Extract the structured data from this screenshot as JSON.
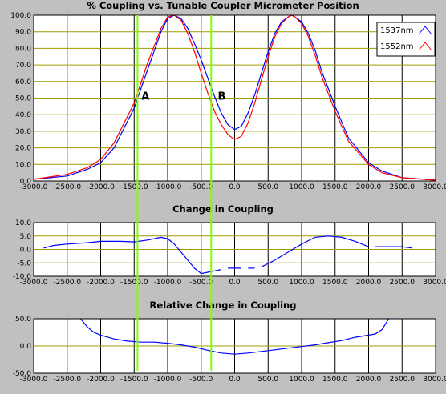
{
  "chart_data": [
    {
      "type": "line",
      "title": "% Coupling vs. Tunable Coupler Micrometer Position",
      "xlim": [
        -3000,
        3000
      ],
      "ylim": [
        0,
        100
      ],
      "x_ticks": [
        "-3000.0",
        "-2500.0",
        "-2000.0",
        "-1500.0",
        "-1000.0",
        "-500.0",
        "0.0",
        "500.0",
        "1000.0",
        "1500.0",
        "2000.0",
        "2500.0",
        "3000.0"
      ],
      "y_ticks": [
        "0.0",
        "10.0",
        "20.0",
        "30.0",
        "40.0",
        "50.0",
        "60.0",
        "70.0",
        "80.0",
        "90.0",
        "100.0"
      ],
      "grid": true,
      "legend_position": "top-right",
      "series": [
        {
          "name": "1537nm",
          "color": "#0000ff",
          "x": [
            -3000,
            -2500,
            -2200,
            -2000,
            -1800,
            -1500,
            -1300,
            -1100,
            -1000,
            -900,
            -800,
            -700,
            -600,
            -500,
            -400,
            -300,
            -200,
            -100,
            0,
            100,
            200,
            300,
            400,
            500,
            600,
            700,
            800,
            850,
            900,
            1000,
            1100,
            1200,
            1300,
            1500,
            1700,
            2000,
            2200,
            2500,
            3000
          ],
          "y": [
            1,
            3,
            7,
            11,
            20,
            44,
            67,
            90,
            98,
            100,
            98,
            92,
            83,
            73,
            62,
            51,
            41,
            34,
            31,
            33,
            41,
            52,
            65,
            78,
            89,
            96,
            99,
            100,
            99,
            96,
            89,
            79,
            66,
            45,
            26,
            11,
            6,
            2,
            0.5
          ]
        },
        {
          "name": "1552nm",
          "color": "#ff0000",
          "x": [
            -3000,
            -2500,
            -2200,
            -2000,
            -1800,
            -1500,
            -1300,
            -1100,
            -1000,
            -900,
            -800,
            -700,
            -600,
            -500,
            -400,
            -300,
            -200,
            -100,
            0,
            100,
            200,
            300,
            400,
            500,
            600,
            700,
            800,
            850,
            900,
            1000,
            1100,
            1200,
            1300,
            1500,
            1700,
            2000,
            2200,
            2500,
            3000
          ],
          "y": [
            1,
            4,
            8,
            13,
            23,
            47,
            71,
            92,
            99,
            100,
            97,
            89,
            78,
            65,
            53,
            42,
            34,
            28,
            25,
            27,
            35,
            47,
            61,
            75,
            87,
            95,
            99,
            100,
            99,
            95,
            87,
            76,
            63,
            42,
            24,
            10,
            5,
            2,
            0.5
          ]
        }
      ],
      "annotations": [
        {
          "label": "A",
          "x": -1440,
          "y": 50
        },
        {
          "label": "B",
          "x": -300,
          "y": 50
        }
      ],
      "vertical_lines": [
        -1450,
        -350
      ]
    },
    {
      "type": "line",
      "title": "Change in Coupling",
      "xlim": [
        -3000,
        3000
      ],
      "ylim": [
        -10,
        10
      ],
      "x_ticks": [
        "-3000.0",
        "-2500.0",
        "-2000.0",
        "-1500.0",
        "-1000.0",
        "-500.0",
        "0.0",
        "500.0",
        "1000.0",
        "1500.0",
        "2000.0",
        "2500.0",
        "3000.0"
      ],
      "y_ticks": [
        "-10.0",
        "-5.0",
        "0.0",
        "5.0",
        "10.0"
      ],
      "grid": true,
      "series": [
        {
          "color": "#0000ff",
          "segments": [
            {
              "x": [
                -2850,
                -2700,
                -2500,
                -2200,
                -2000,
                -1700,
                -1500,
                -1300,
                -1200,
                -1100,
                -1000,
                -900,
                -800,
                -700,
                -600,
                -500,
                -400,
                -300,
                -200
              ],
              "y": [
                0.5,
                1.5,
                2,
                2.5,
                3,
                3,
                2.8,
                3.5,
                4,
                4.5,
                4,
                2,
                -1,
                -4,
                -7,
                -9,
                -8.5,
                -8,
                -7.5
              ]
            },
            {
              "x": [
                -100,
                0,
                100
              ],
              "y": [
                -7,
                -7,
                -7
              ]
            },
            {
              "x": [
                200,
                300
              ],
              "y": [
                -7,
                -7
              ]
            },
            {
              "x": [
                400,
                600,
                800,
                1000,
                1200,
                1400,
                1600,
                1800,
                1900,
                2000
              ],
              "y": [
                -6.5,
                -4,
                -1,
                2,
                4.5,
                5,
                4.5,
                3,
                2,
                1
              ]
            },
            {
              "x": [
                2100,
                2300,
                2500,
                2650
              ],
              "y": [
                1,
                1,
                1,
                0.5
              ]
            }
          ]
        }
      ]
    },
    {
      "type": "line",
      "title": "Relative Change in Coupling",
      "xlim": [
        -3000,
        3000
      ],
      "ylim": [
        -50,
        50
      ],
      "x_ticks": [
        "-3000.0",
        "-2500.0",
        "-2000.0",
        "-1500.0",
        "-1000.0",
        "-500.0",
        "0.0",
        "500.0",
        "1000.0",
        "1500.0",
        "2000.0",
        "2500.0",
        "3000.0"
      ],
      "y_ticks": [
        "-50.0",
        "0.0",
        "50.0"
      ],
      "grid": true,
      "series": [
        {
          "color": "#0000ff",
          "segments": [
            {
              "x": [
                -2300,
                -2200,
                -2100,
                -2000,
                -1800,
                -1600,
                -1400,
                -1200,
                -1000,
                -800,
                -600,
                -400,
                -200,
                0,
                200,
                400,
                600,
                800,
                1000,
                1200,
                1400,
                1600,
                1800,
                2000,
                2100,
                2200,
                2300
              ],
              "y": [
                50,
                35,
                25,
                20,
                13,
                9,
                7,
                7,
                5,
                2,
                -2,
                -8,
                -13,
                -15,
                -13,
                -10,
                -7,
                -4,
                -1,
                2,
                6,
                10,
                16,
                20,
                22,
                30,
                50
              ]
            }
          ]
        }
      ]
    }
  ],
  "legend": {
    "labels": [
      "1537nm",
      "1552nm"
    ]
  },
  "colors": {
    "background": "#c0c0c0",
    "plot": "#ffffff",
    "grid_h": "#9c9c00",
    "grid_v": "#000000",
    "marker_line": "#80ff00"
  }
}
